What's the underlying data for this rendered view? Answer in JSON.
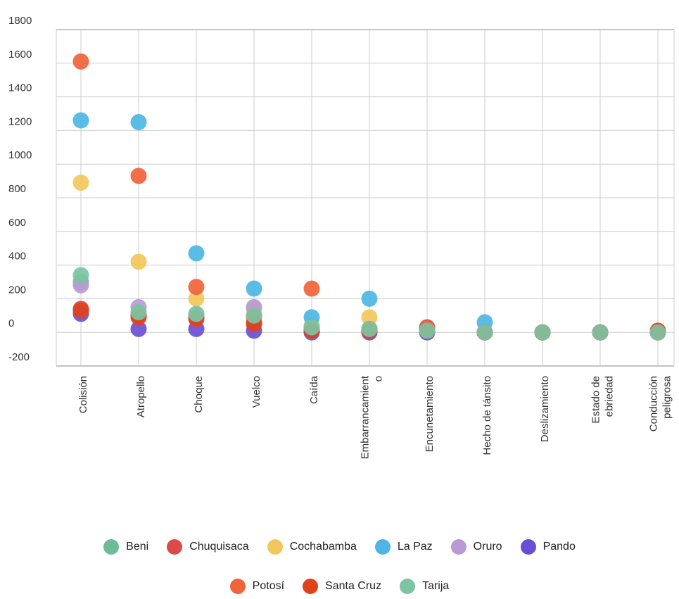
{
  "chart_data": {
    "type": "scatter",
    "categories": [
      "Colisión",
      "Atropello",
      "Choque",
      "Vuelco",
      "Caída",
      "Embarrancamient o",
      "Encunetamiento",
      "Hecho de tánsito",
      "Deslizamiento",
      "Estado de ebriedad",
      "Conducción peligrosa"
    ],
    "category_lines": [
      [
        "Colisión"
      ],
      [
        "Atropello"
      ],
      [
        "Choque"
      ],
      [
        "Vuelco"
      ],
      [
        "Caída"
      ],
      [
        "Embarrancamient",
        "o"
      ],
      [
        "Encunetamiento"
      ],
      [
        "Hecho de tánsito"
      ],
      [
        "Deslizamiento"
      ],
      [
        "Estado de",
        "ebriedad"
      ],
      [
        "Conducción",
        "peligrosa"
      ]
    ],
    "ylim": [
      -200,
      1800
    ],
    "yticks": [
      "-200",
      "0",
      "200",
      "400",
      "600",
      "800",
      "1000",
      "1200",
      "1400",
      "1600",
      "1800"
    ],
    "grid": true,
    "legend_position": "bottom",
    "series": [
      {
        "name": "Beni",
        "color": "#6dbb97",
        "values": [
          300,
          110,
          100,
          100,
          30,
          20,
          10,
          0,
          0,
          0,
          0
        ]
      },
      {
        "name": "Chuquisaca",
        "color": "#dc4b4b",
        "values": [
          140,
          100,
          90,
          60,
          15,
          20,
          30,
          0,
          0,
          0,
          0
        ]
      },
      {
        "name": "Cochabamba",
        "color": "#f2c75c",
        "values": [
          890,
          420,
          200,
          140,
          40,
          90,
          10,
          0,
          0,
          0,
          0
        ]
      },
      {
        "name": "La Paz",
        "color": "#4db6e6",
        "values": [
          1260,
          1250,
          470,
          260,
          90,
          200,
          20,
          60,
          0,
          0,
          0
        ]
      },
      {
        "name": "Oruro",
        "color": "#b99ad6",
        "values": [
          280,
          150,
          100,
          150,
          20,
          20,
          10,
          0,
          0,
          0,
          0
        ]
      },
      {
        "name": "Pando",
        "color": "#6a4fd6",
        "values": [
          110,
          20,
          20,
          10,
          0,
          0,
          0,
          0,
          0,
          0,
          0
        ]
      },
      {
        "name": "Potosí",
        "color": "#f0643a",
        "values": [
          1610,
          930,
          270,
          90,
          260,
          20,
          20,
          0,
          0,
          0,
          0
        ]
      },
      {
        "name": "Santa Cruz",
        "color": "#e0431b",
        "values": [
          130,
          90,
          80,
          50,
          10,
          10,
          10,
          0,
          0,
          0,
          10
        ]
      },
      {
        "name": "Tarija",
        "color": "#7cc4a2",
        "values": [
          340,
          120,
          110,
          100,
          30,
          20,
          10,
          0,
          0,
          0,
          0
        ]
      }
    ]
  }
}
